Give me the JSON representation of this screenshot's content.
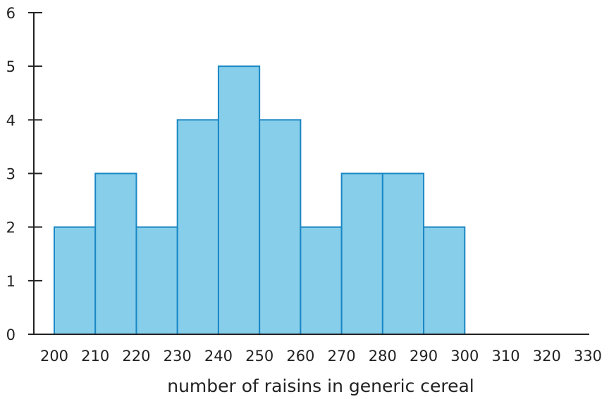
{
  "chart_data": {
    "type": "bar",
    "histogram": true,
    "bin_edges": [
      200,
      210,
      220,
      230,
      240,
      250,
      260,
      270,
      280,
      290,
      300
    ],
    "values": [
      2,
      3,
      2,
      4,
      5,
      4,
      2,
      3,
      3,
      2
    ],
    "title": "",
    "xlabel": "number of raisins in generic cereal",
    "ylabel": "",
    "xlim": [
      200,
      330
    ],
    "ylim": [
      0,
      6
    ],
    "x_ticks": [
      "200",
      "210",
      "220",
      "230",
      "240",
      "250",
      "260",
      "270",
      "280",
      "290",
      "300",
      "310",
      "320",
      "330"
    ],
    "y_ticks": [
      "0",
      "1",
      "2",
      "3",
      "4",
      "5",
      "6"
    ],
    "grid": false,
    "colors": {
      "bar_fill": "#87ceeb",
      "bar_stroke": "#1a87c4",
      "axis": "#222222"
    }
  }
}
